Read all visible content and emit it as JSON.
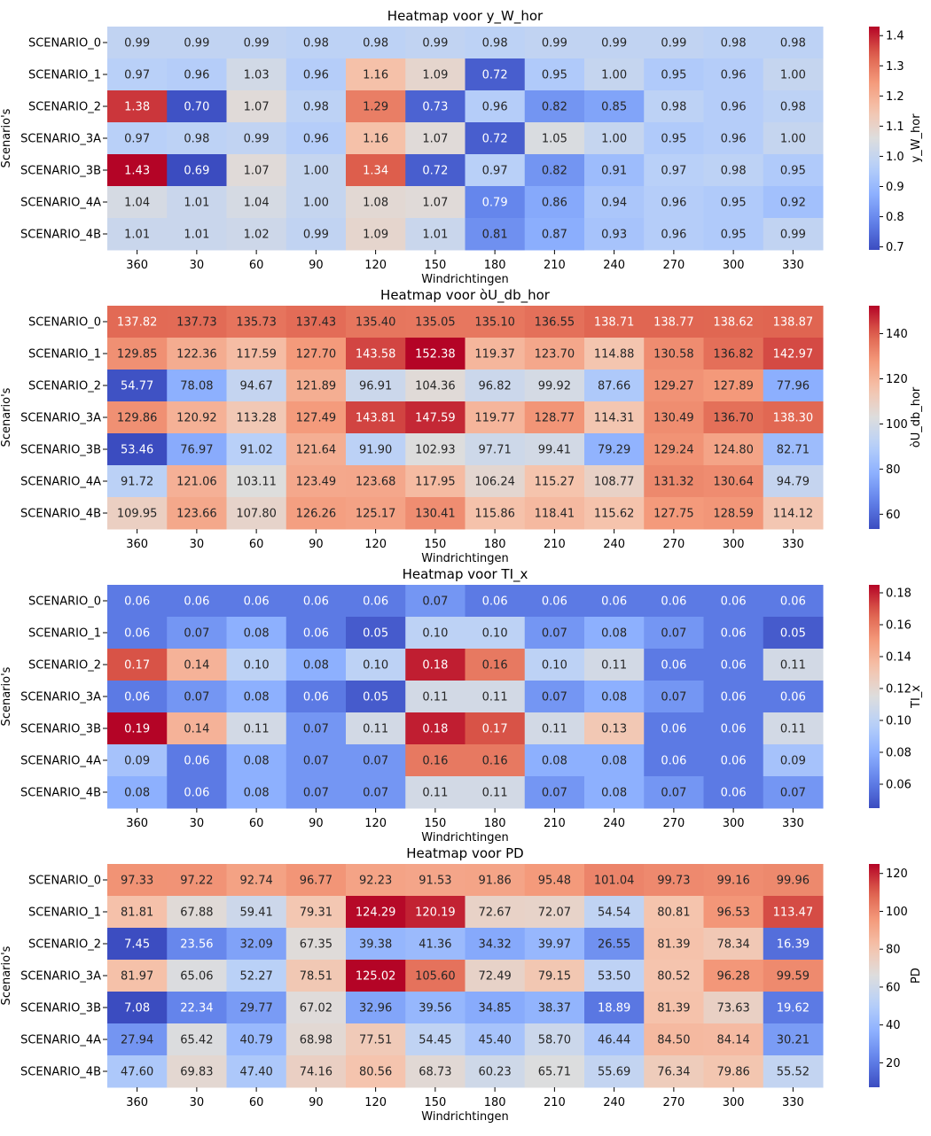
{
  "chart_data": [
    {
      "type": "heatmap",
      "title": "Heatmap voor y_W_hor",
      "xlabel": "Windrichtingen",
      "ylabel": "Scenario's",
      "colorbar_label": "y_W_hor",
      "colormap": "coolwarm",
      "vmin": 0.69,
      "vmax": 1.43,
      "colorbar_ticks": [
        "0.7",
        "0.8",
        "0.9",
        "1.0",
        "1.1",
        "1.2",
        "1.3",
        "1.4"
      ],
      "x_categories": [
        "360",
        "30",
        "60",
        "90",
        "120",
        "150",
        "180",
        "210",
        "240",
        "270",
        "300",
        "330"
      ],
      "y_categories": [
        "SCENARIO_0",
        "SCENARIO_1",
        "SCENARIO_2",
        "SCENARIO_3A",
        "SCENARIO_3B",
        "SCENARIO_4A",
        "SCENARIO_4B"
      ],
      "values": [
        [
          0.99,
          0.99,
          0.99,
          0.98,
          0.98,
          0.99,
          0.98,
          0.99,
          0.99,
          0.99,
          0.98,
          0.98
        ],
        [
          0.97,
          0.96,
          1.03,
          0.96,
          1.16,
          1.09,
          0.72,
          0.95,
          1.0,
          0.95,
          0.96,
          1.0
        ],
        [
          1.38,
          0.7,
          1.07,
          0.98,
          1.29,
          0.73,
          0.96,
          0.82,
          0.85,
          0.98,
          0.96,
          0.98
        ],
        [
          0.97,
          0.98,
          0.99,
          0.96,
          1.16,
          1.07,
          0.72,
          1.05,
          1.0,
          0.95,
          0.96,
          1.0
        ],
        [
          1.43,
          0.69,
          1.07,
          1.0,
          1.34,
          0.72,
          0.97,
          0.82,
          0.91,
          0.97,
          0.98,
          0.95
        ],
        [
          1.04,
          1.01,
          1.04,
          1.0,
          1.08,
          1.07,
          0.79,
          0.86,
          0.94,
          0.96,
          0.95,
          0.92
        ],
        [
          1.01,
          1.01,
          1.02,
          0.99,
          1.09,
          1.01,
          0.81,
          0.87,
          0.93,
          0.96,
          0.95,
          0.99
        ]
      ]
    },
    {
      "type": "heatmap",
      "title": "Heatmap voor òU_db_hor",
      "xlabel": "Windrichtingen",
      "ylabel": "Scenario's",
      "colorbar_label": "òU_db_hor",
      "colormap": "coolwarm",
      "vmin": 53.46,
      "vmax": 152.38,
      "colorbar_ticks": [
        "60",
        "80",
        "100",
        "120",
        "140"
      ],
      "x_categories": [
        "360",
        "30",
        "60",
        "90",
        "120",
        "150",
        "180",
        "210",
        "240",
        "270",
        "300",
        "330"
      ],
      "y_categories": [
        "SCENARIO_0",
        "SCENARIO_1",
        "SCENARIO_2",
        "SCENARIO_3A",
        "SCENARIO_3B",
        "SCENARIO_4A",
        "SCENARIO_4B"
      ],
      "values": [
        [
          137.82,
          137.73,
          135.73,
          137.43,
          135.4,
          135.05,
          135.1,
          136.55,
          138.71,
          138.77,
          138.62,
          138.87
        ],
        [
          129.85,
          122.36,
          117.59,
          127.7,
          143.58,
          152.38,
          119.37,
          123.7,
          114.88,
          130.58,
          136.82,
          142.97
        ],
        [
          54.77,
          78.08,
          94.67,
          121.89,
          96.91,
          104.36,
          96.82,
          99.92,
          87.66,
          129.27,
          127.89,
          77.96
        ],
        [
          129.86,
          120.92,
          113.28,
          127.49,
          143.81,
          147.59,
          119.77,
          128.77,
          114.31,
          130.49,
          136.7,
          138.3
        ],
        [
          53.46,
          76.97,
          91.02,
          121.64,
          91.9,
          102.93,
          97.71,
          99.41,
          79.29,
          129.24,
          124.8,
          82.71
        ],
        [
          91.72,
          121.06,
          103.11,
          123.49,
          123.68,
          117.95,
          106.24,
          115.27,
          108.77,
          131.32,
          130.64,
          94.79
        ],
        [
          109.95,
          123.66,
          107.8,
          126.26,
          125.17,
          130.41,
          115.86,
          118.41,
          115.62,
          127.75,
          128.59,
          114.12
        ]
      ]
    },
    {
      "type": "heatmap",
      "title": "Heatmap voor TI_x",
      "xlabel": "Windrichtingen",
      "ylabel": "Scenario's",
      "colorbar_label": "TI_x",
      "colormap": "coolwarm",
      "vmin": 0.045,
      "vmax": 0.185,
      "colorbar_ticks": [
        "0.06",
        "0.08",
        "0.10",
        "0.12",
        "0.14",
        "0.16",
        "0.18"
      ],
      "x_categories": [
        "360",
        "30",
        "60",
        "90",
        "120",
        "150",
        "180",
        "210",
        "240",
        "270",
        "300",
        "330"
      ],
      "y_categories": [
        "SCENARIO_0",
        "SCENARIO_1",
        "SCENARIO_2",
        "SCENARIO_3A",
        "SCENARIO_3B",
        "SCENARIO_4A",
        "SCENARIO_4B"
      ],
      "values": [
        [
          0.06,
          0.06,
          0.06,
          0.06,
          0.06,
          0.07,
          0.06,
          0.06,
          0.06,
          0.06,
          0.06,
          0.06
        ],
        [
          0.06,
          0.07,
          0.08,
          0.06,
          0.05,
          0.1,
          0.1,
          0.07,
          0.08,
          0.07,
          0.06,
          0.05
        ],
        [
          0.17,
          0.14,
          0.1,
          0.08,
          0.1,
          0.18,
          0.16,
          0.1,
          0.11,
          0.06,
          0.06,
          0.11
        ],
        [
          0.06,
          0.07,
          0.08,
          0.06,
          0.05,
          0.11,
          0.11,
          0.07,
          0.08,
          0.07,
          0.06,
          0.06
        ],
        [
          0.19,
          0.14,
          0.11,
          0.07,
          0.11,
          0.18,
          0.17,
          0.11,
          0.13,
          0.06,
          0.06,
          0.11
        ],
        [
          0.09,
          0.06,
          0.08,
          0.07,
          0.07,
          0.16,
          0.16,
          0.08,
          0.08,
          0.06,
          0.06,
          0.09
        ],
        [
          0.08,
          0.06,
          0.08,
          0.07,
          0.07,
          0.11,
          0.11,
          0.07,
          0.08,
          0.07,
          0.06,
          0.07
        ]
      ]
    },
    {
      "type": "heatmap",
      "title": "Heatmap voor PD",
      "xlabel": "Windrichtingen",
      "ylabel": "Scenario's",
      "colorbar_label": "PD",
      "colormap": "coolwarm",
      "vmin": 7.08,
      "vmax": 125.02,
      "colorbar_ticks": [
        "20",
        "40",
        "60",
        "80",
        "100",
        "120"
      ],
      "x_categories": [
        "360",
        "30",
        "60",
        "90",
        "120",
        "150",
        "180",
        "210",
        "240",
        "270",
        "300",
        "330"
      ],
      "y_categories": [
        "SCENARIO_0",
        "SCENARIO_1",
        "SCENARIO_2",
        "SCENARIO_3A",
        "SCENARIO_3B",
        "SCENARIO_4A",
        "SCENARIO_4B"
      ],
      "values": [
        [
          97.33,
          97.22,
          92.74,
          96.77,
          92.23,
          91.53,
          91.86,
          95.48,
          101.04,
          99.73,
          99.16,
          99.96
        ],
        [
          81.81,
          67.88,
          59.41,
          79.31,
          124.29,
          120.19,
          72.67,
          72.07,
          54.54,
          80.81,
          96.53,
          113.47
        ],
        [
          7.45,
          23.56,
          32.09,
          67.35,
          39.38,
          41.36,
          34.32,
          39.97,
          26.55,
          81.39,
          78.34,
          16.39
        ],
        [
          81.97,
          65.06,
          52.27,
          78.51,
          125.02,
          105.6,
          72.49,
          79.15,
          53.5,
          80.52,
          96.28,
          99.59
        ],
        [
          7.08,
          22.34,
          29.77,
          67.02,
          32.96,
          39.56,
          34.85,
          38.37,
          18.89,
          81.39,
          73.63,
          19.62
        ],
        [
          27.94,
          65.42,
          40.79,
          68.98,
          77.51,
          54.45,
          45.4,
          58.7,
          46.44,
          84.5,
          84.14,
          30.21
        ],
        [
          47.6,
          69.83,
          47.4,
          74.16,
          80.56,
          68.73,
          60.23,
          65.71,
          55.69,
          76.34,
          79.86,
          55.52
        ]
      ]
    }
  ]
}
